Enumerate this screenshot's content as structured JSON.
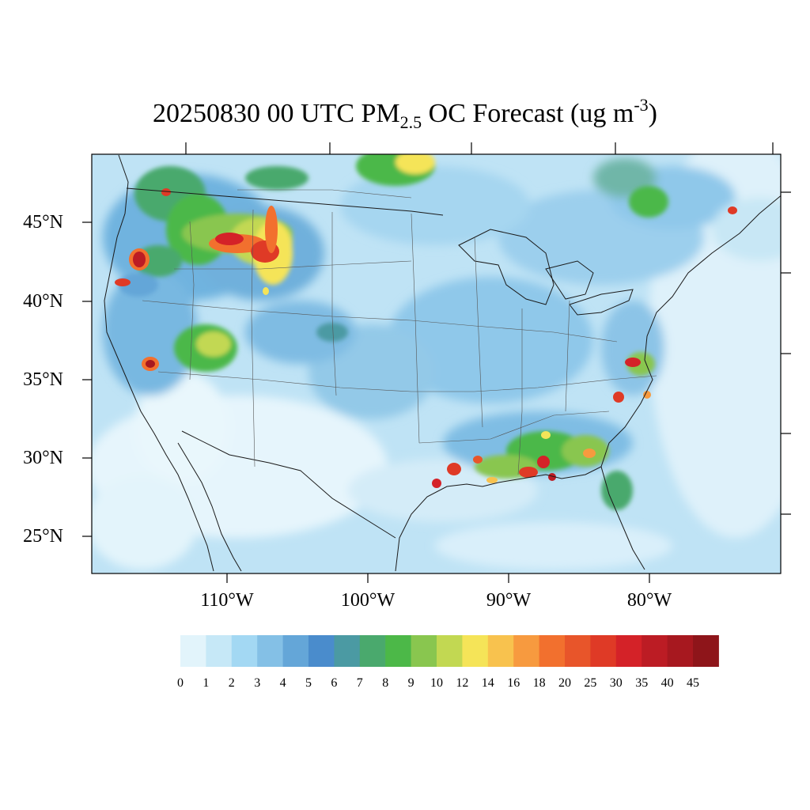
{
  "title": {
    "main": "20250830 00 UTC PM",
    "subscript": "2.5",
    "mid": " OC Forecast (ug m",
    "superscript": "-3",
    "end": ")"
  },
  "map": {
    "lat_labels": [
      "45°N",
      "40°N",
      "35°N",
      "30°N",
      "25°N"
    ],
    "lon_labels": [
      "110°W",
      "100°W",
      "90°W",
      "80°W"
    ],
    "background_color": "#dff2fb"
  },
  "colorbar": {
    "labels": [
      "0",
      "1",
      "2",
      "3",
      "4",
      "5",
      "6",
      "7",
      "8",
      "9",
      "10",
      "12",
      "14",
      "16",
      "18",
      "20",
      "25",
      "30",
      "35",
      "40",
      "45"
    ],
    "colors": [
      "#e2f4fb",
      "#c6e8f7",
      "#a3d8f3",
      "#84c0e6",
      "#64a6d8",
      "#4a8ccc",
      "#4b9aa3",
      "#4aa96d",
      "#4cb848",
      "#89c64f",
      "#c2d852",
      "#f5e458",
      "#f8c24e",
      "#f79a3f",
      "#f2702e",
      "#e8552a",
      "#df3a26",
      "#d42228",
      "#bc1c24",
      "#a7181f",
      "#8e151a"
    ]
  }
}
